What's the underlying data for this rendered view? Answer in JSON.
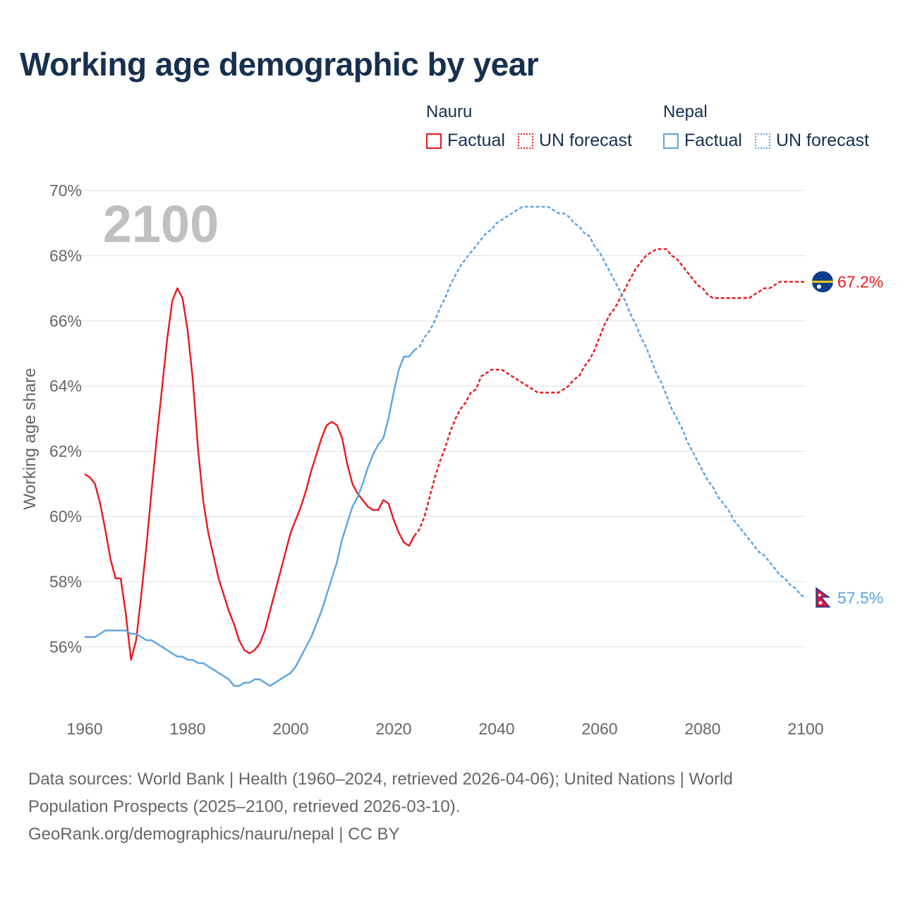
{
  "title": "Working age demographic by year",
  "legend": {
    "groups": [
      {
        "country": "Nauru",
        "color": "#e8191f",
        "factual": "Factual",
        "forecast": "UN forecast"
      },
      {
        "country": "Nepal",
        "color": "#5ba3e4",
        "factual": "Factual",
        "forecast": "UN forecast"
      }
    ]
  },
  "year_label": "2100",
  "source": {
    "line1": "Data sources: World Bank | Health (1960–2024, retrieved 2026-04-06); United Nations | World",
    "line2": "Population Prospects (2025–2100, retrieved 2026-03-10).",
    "line3": "GeoRank.org/demographics/nauru/nepal | CC BY"
  },
  "chart_data": {
    "type": "line",
    "title": "Working age demographic by year",
    "xlabel": "",
    "ylabel": "Working age share",
    "xlim": [
      1960,
      2100
    ],
    "ylim": [
      54.2,
      70
    ],
    "x_ticks": [
      1960,
      1980,
      2000,
      2020,
      2040,
      2060,
      2080,
      2100
    ],
    "x_tick_labels": [
      "1960",
      "1980",
      "2000",
      "2020",
      "2040",
      "2060",
      "2080",
      "2100"
    ],
    "y_ticks": [
      56,
      58,
      60,
      62,
      64,
      66,
      68,
      70
    ],
    "y_tick_labels": [
      "56%",
      "58%",
      "60%",
      "62%",
      "64%",
      "66%",
      "68%",
      "70%"
    ],
    "grid": true,
    "forecast_start": 2024,
    "series": [
      {
        "name": "Nauru",
        "color": "#e8191f",
        "end_label": "67.2%",
        "end_icon": "nauru-flag-icon",
        "points": [
          [
            1960,
            61.3
          ],
          [
            1961,
            61.2
          ],
          [
            1962,
            61.0
          ],
          [
            1963,
            60.4
          ],
          [
            1964,
            59.6
          ],
          [
            1965,
            58.7
          ],
          [
            1966,
            58.1
          ],
          [
            1967,
            58.1
          ],
          [
            1968,
            57.0
          ],
          [
            1969,
            55.6
          ],
          [
            1970,
            56.2
          ],
          [
            1971,
            57.6
          ],
          [
            1972,
            59.1
          ],
          [
            1973,
            60.8
          ],
          [
            1974,
            62.4
          ],
          [
            1975,
            63.9
          ],
          [
            1976,
            65.4
          ],
          [
            1977,
            66.6
          ],
          [
            1978,
            67.0
          ],
          [
            1979,
            66.7
          ],
          [
            1980,
            65.7
          ],
          [
            1981,
            64.2
          ],
          [
            1982,
            62.1
          ],
          [
            1983,
            60.5
          ],
          [
            1984,
            59.5
          ],
          [
            1985,
            58.8
          ],
          [
            1986,
            58.1
          ],
          [
            1987,
            57.6
          ],
          [
            1988,
            57.1
          ],
          [
            1989,
            56.7
          ],
          [
            1990,
            56.2
          ],
          [
            1991,
            55.9
          ],
          [
            1992,
            55.8
          ],
          [
            1993,
            55.9
          ],
          [
            1994,
            56.1
          ],
          [
            1995,
            56.5
          ],
          [
            1996,
            57.1
          ],
          [
            1997,
            57.7
          ],
          [
            1998,
            58.3
          ],
          [
            1999,
            58.9
          ],
          [
            2000,
            59.5
          ],
          [
            2001,
            59.9
          ],
          [
            2002,
            60.3
          ],
          [
            2003,
            60.8
          ],
          [
            2004,
            61.4
          ],
          [
            2005,
            61.9
          ],
          [
            2006,
            62.4
          ],
          [
            2007,
            62.8
          ],
          [
            2008,
            62.9
          ],
          [
            2009,
            62.8
          ],
          [
            2010,
            62.4
          ],
          [
            2011,
            61.6
          ],
          [
            2012,
            61.0
          ],
          [
            2013,
            60.7
          ],
          [
            2014,
            60.5
          ],
          [
            2015,
            60.3
          ],
          [
            2016,
            60.2
          ],
          [
            2017,
            60.2
          ],
          [
            2018,
            60.5
          ],
          [
            2019,
            60.4
          ],
          [
            2020,
            59.9
          ],
          [
            2021,
            59.5
          ],
          [
            2022,
            59.2
          ],
          [
            2023,
            59.1
          ],
          [
            2024,
            59.4
          ],
          [
            2025,
            59.6
          ],
          [
            2026,
            60.0
          ],
          [
            2027,
            60.6
          ],
          [
            2028,
            61.2
          ],
          [
            2029,
            61.7
          ],
          [
            2030,
            62.1
          ],
          [
            2031,
            62.6
          ],
          [
            2032,
            63.0
          ],
          [
            2033,
            63.3
          ],
          [
            2034,
            63.5
          ],
          [
            2035,
            63.8
          ],
          [
            2036,
            63.9
          ],
          [
            2037,
            64.3
          ],
          [
            2038,
            64.4
          ],
          [
            2039,
            64.5
          ],
          [
            2040,
            64.5
          ],
          [
            2041,
            64.5
          ],
          [
            2042,
            64.4
          ],
          [
            2043,
            64.3
          ],
          [
            2044,
            64.2
          ],
          [
            2045,
            64.1
          ],
          [
            2046,
            64.0
          ],
          [
            2047,
            63.9
          ],
          [
            2048,
            63.8
          ],
          [
            2049,
            63.8
          ],
          [
            2050,
            63.8
          ],
          [
            2051,
            63.8
          ],
          [
            2052,
            63.8
          ],
          [
            2053,
            63.9
          ],
          [
            2054,
            64.0
          ],
          [
            2055,
            64.2
          ],
          [
            2056,
            64.3
          ],
          [
            2057,
            64.6
          ],
          [
            2058,
            64.8
          ],
          [
            2059,
            65.1
          ],
          [
            2060,
            65.5
          ],
          [
            2061,
            65.9
          ],
          [
            2062,
            66.2
          ],
          [
            2063,
            66.4
          ],
          [
            2064,
            66.7
          ],
          [
            2065,
            67.0
          ],
          [
            2066,
            67.3
          ],
          [
            2067,
            67.6
          ],
          [
            2068,
            67.8
          ],
          [
            2069,
            68.0
          ],
          [
            2070,
            68.1
          ],
          [
            2071,
            68.2
          ],
          [
            2072,
            68.2
          ],
          [
            2073,
            68.2
          ],
          [
            2074,
            68.0
          ],
          [
            2075,
            67.9
          ],
          [
            2076,
            67.7
          ],
          [
            2077,
            67.5
          ],
          [
            2078,
            67.3
          ],
          [
            2079,
            67.1
          ],
          [
            2080,
            67.0
          ],
          [
            2081,
            66.8
          ],
          [
            2082,
            66.7
          ],
          [
            2083,
            66.7
          ],
          [
            2084,
            66.7
          ],
          [
            2085,
            66.7
          ],
          [
            2086,
            66.7
          ],
          [
            2087,
            66.7
          ],
          [
            2088,
            66.7
          ],
          [
            2089,
            66.7
          ],
          [
            2090,
            66.8
          ],
          [
            2091,
            66.9
          ],
          [
            2092,
            67.0
          ],
          [
            2093,
            67.0
          ],
          [
            2094,
            67.1
          ],
          [
            2095,
            67.2
          ],
          [
            2096,
            67.2
          ],
          [
            2097,
            67.2
          ],
          [
            2098,
            67.2
          ],
          [
            2099,
            67.2
          ],
          [
            2100,
            67.2
          ]
        ]
      },
      {
        "name": "Nepal",
        "color": "#5ba3e4",
        "end_label": "57.5%",
        "end_icon": "nepal-flag-icon",
        "points": [
          [
            1960,
            56.3
          ],
          [
            1961,
            56.3
          ],
          [
            1962,
            56.3
          ],
          [
            1963,
            56.4
          ],
          [
            1964,
            56.5
          ],
          [
            1965,
            56.5
          ],
          [
            1966,
            56.5
          ],
          [
            1967,
            56.5
          ],
          [
            1968,
            56.5
          ],
          [
            1969,
            56.4
          ],
          [
            1970,
            56.4
          ],
          [
            1971,
            56.3
          ],
          [
            1972,
            56.2
          ],
          [
            1973,
            56.2
          ],
          [
            1974,
            56.1
          ],
          [
            1975,
            56.0
          ],
          [
            1976,
            55.9
          ],
          [
            1977,
            55.8
          ],
          [
            1978,
            55.7
          ],
          [
            1979,
            55.7
          ],
          [
            1980,
            55.6
          ],
          [
            1981,
            55.6
          ],
          [
            1982,
            55.5
          ],
          [
            1983,
            55.5
          ],
          [
            1984,
            55.4
          ],
          [
            1985,
            55.3
          ],
          [
            1986,
            55.2
          ],
          [
            1987,
            55.1
          ],
          [
            1988,
            55.0
          ],
          [
            1989,
            54.8
          ],
          [
            1990,
            54.8
          ],
          [
            1991,
            54.9
          ],
          [
            1992,
            54.9
          ],
          [
            1993,
            55.0
          ],
          [
            1994,
            55.0
          ],
          [
            1995,
            54.9
          ],
          [
            1996,
            54.8
          ],
          [
            1997,
            54.9
          ],
          [
            1998,
            55.0
          ],
          [
            1999,
            55.1
          ],
          [
            2000,
            55.2
          ],
          [
            2001,
            55.4
          ],
          [
            2002,
            55.7
          ],
          [
            2003,
            56.0
          ],
          [
            2004,
            56.3
          ],
          [
            2005,
            56.7
          ],
          [
            2006,
            57.1
          ],
          [
            2007,
            57.6
          ],
          [
            2008,
            58.1
          ],
          [
            2009,
            58.6
          ],
          [
            2010,
            59.3
          ],
          [
            2011,
            59.8
          ],
          [
            2012,
            60.3
          ],
          [
            2013,
            60.6
          ],
          [
            2014,
            61.0
          ],
          [
            2015,
            61.5
          ],
          [
            2016,
            61.9
          ],
          [
            2017,
            62.2
          ],
          [
            2018,
            62.4
          ],
          [
            2019,
            63.0
          ],
          [
            2020,
            63.8
          ],
          [
            2021,
            64.5
          ],
          [
            2022,
            64.9
          ],
          [
            2023,
            64.9
          ],
          [
            2024,
            65.1
          ],
          [
            2025,
            65.2
          ],
          [
            2026,
            65.5
          ],
          [
            2027,
            65.7
          ],
          [
            2028,
            66.0
          ],
          [
            2029,
            66.4
          ],
          [
            2030,
            66.7
          ],
          [
            2031,
            67.1
          ],
          [
            2032,
            67.4
          ],
          [
            2033,
            67.7
          ],
          [
            2034,
            67.9
          ],
          [
            2035,
            68.1
          ],
          [
            2036,
            68.3
          ],
          [
            2037,
            68.5
          ],
          [
            2038,
            68.7
          ],
          [
            2039,
            68.8
          ],
          [
            2040,
            69.0
          ],
          [
            2041,
            69.1
          ],
          [
            2042,
            69.2
          ],
          [
            2043,
            69.3
          ],
          [
            2044,
            69.4
          ],
          [
            2045,
            69.5
          ],
          [
            2046,
            69.5
          ],
          [
            2047,
            69.5
          ],
          [
            2048,
            69.5
          ],
          [
            2049,
            69.5
          ],
          [
            2050,
            69.5
          ],
          [
            2051,
            69.4
          ],
          [
            2052,
            69.3
          ],
          [
            2053,
            69.3
          ],
          [
            2054,
            69.2
          ],
          [
            2055,
            69.0
          ],
          [
            2056,
            68.9
          ],
          [
            2057,
            68.7
          ],
          [
            2058,
            68.6
          ],
          [
            2059,
            68.3
          ],
          [
            2060,
            68.1
          ],
          [
            2061,
            67.8
          ],
          [
            2062,
            67.5
          ],
          [
            2063,
            67.2
          ],
          [
            2064,
            66.9
          ],
          [
            2065,
            66.6
          ],
          [
            2066,
            66.2
          ],
          [
            2067,
            65.9
          ],
          [
            2068,
            65.5
          ],
          [
            2069,
            65.2
          ],
          [
            2070,
            64.8
          ],
          [
            2071,
            64.4
          ],
          [
            2072,
            64.1
          ],
          [
            2073,
            63.7
          ],
          [
            2074,
            63.3
          ],
          [
            2075,
            63.0
          ],
          [
            2076,
            62.7
          ],
          [
            2077,
            62.3
          ],
          [
            2078,
            62.0
          ],
          [
            2079,
            61.7
          ],
          [
            2080,
            61.4
          ],
          [
            2081,
            61.1
          ],
          [
            2082,
            60.9
          ],
          [
            2083,
            60.6
          ],
          [
            2084,
            60.4
          ],
          [
            2085,
            60.2
          ],
          [
            2086,
            59.9
          ],
          [
            2087,
            59.7
          ],
          [
            2088,
            59.5
          ],
          [
            2089,
            59.3
          ],
          [
            2090,
            59.1
          ],
          [
            2091,
            58.9
          ],
          [
            2092,
            58.8
          ],
          [
            2093,
            58.6
          ],
          [
            2094,
            58.4
          ],
          [
            2095,
            58.2
          ],
          [
            2096,
            58.1
          ],
          [
            2097,
            57.9
          ],
          [
            2098,
            57.8
          ],
          [
            2099,
            57.6
          ],
          [
            2100,
            57.5
          ]
        ]
      }
    ]
  }
}
